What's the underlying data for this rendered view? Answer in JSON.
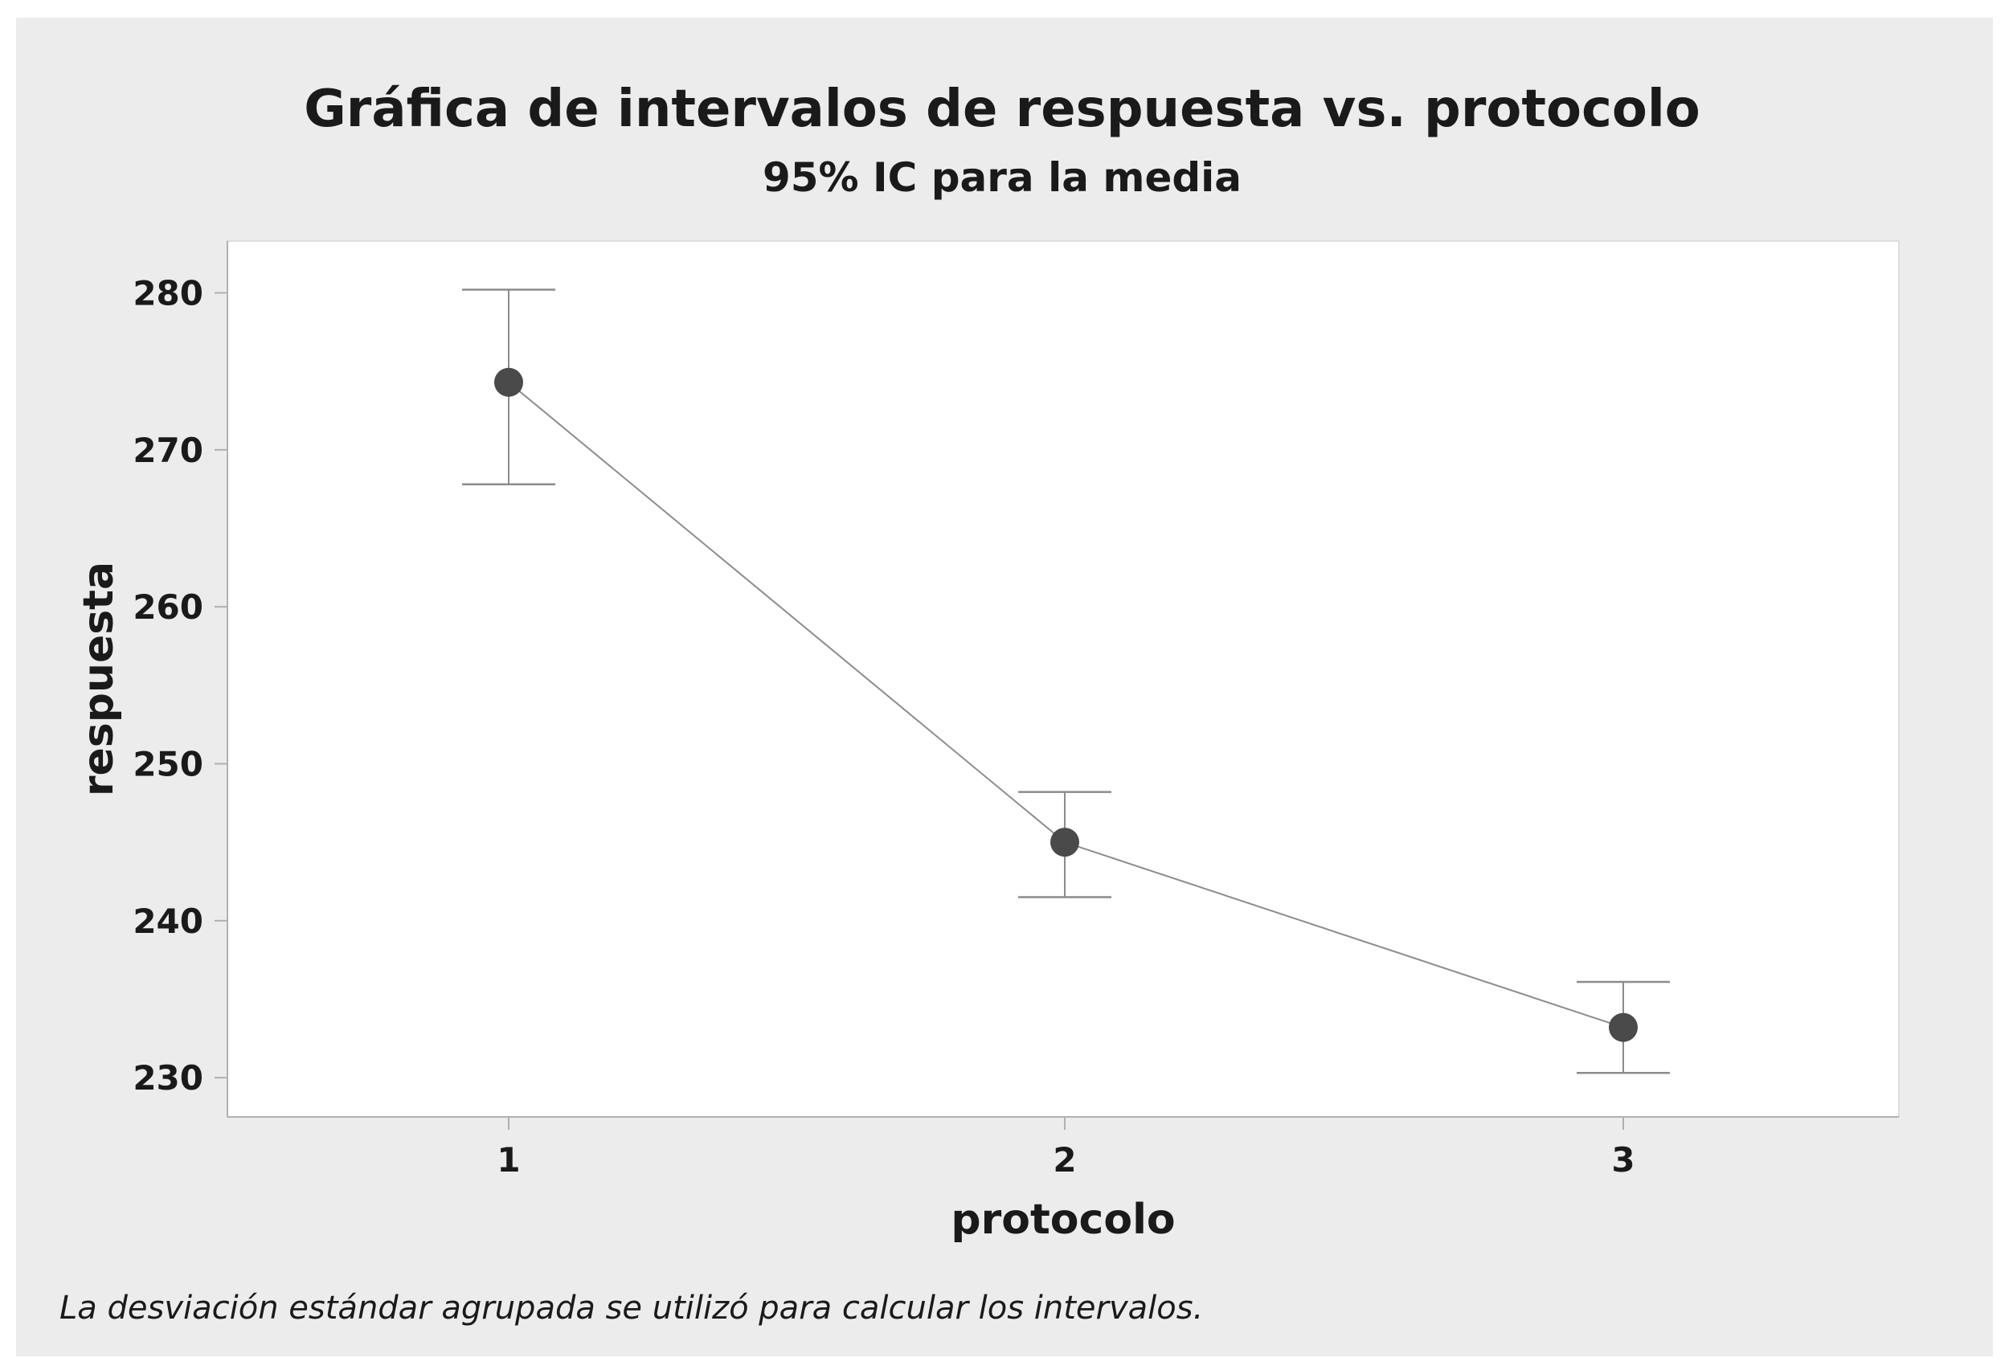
{
  "colors": {
    "outer_background": "#ececec",
    "plot_background": "#ffffff",
    "marker": "#4a4a4a",
    "connect_line": "#8c8c8c",
    "error_bar": "#8c8c8c",
    "axis": "#b0b0b0",
    "text": "#1a1a1a"
  },
  "chart_data": {
    "type": "line",
    "title": "Gráfica de intervalos de respuesta vs. protocolo",
    "subtitle": "95% IC para la media",
    "xlabel": "protocolo",
    "ylabel": "respuesta",
    "categories": [
      "1",
      "2",
      "3"
    ],
    "y_ticks": [
      "230",
      "240",
      "250",
      "260",
      "270",
      "280"
    ],
    "ylim": [
      227.5,
      283.3
    ],
    "grid": false,
    "series": [
      {
        "values": [
          274.3,
          245.0,
          233.2
        ],
        "ci_lower": [
          267.8,
          241.5,
          230.3
        ],
        "ci_upper": [
          280.2,
          248.2,
          236.1
        ]
      }
    ],
    "footnote": "La desviación estándar agrupada se utilizó para calcular los intervalos."
  }
}
